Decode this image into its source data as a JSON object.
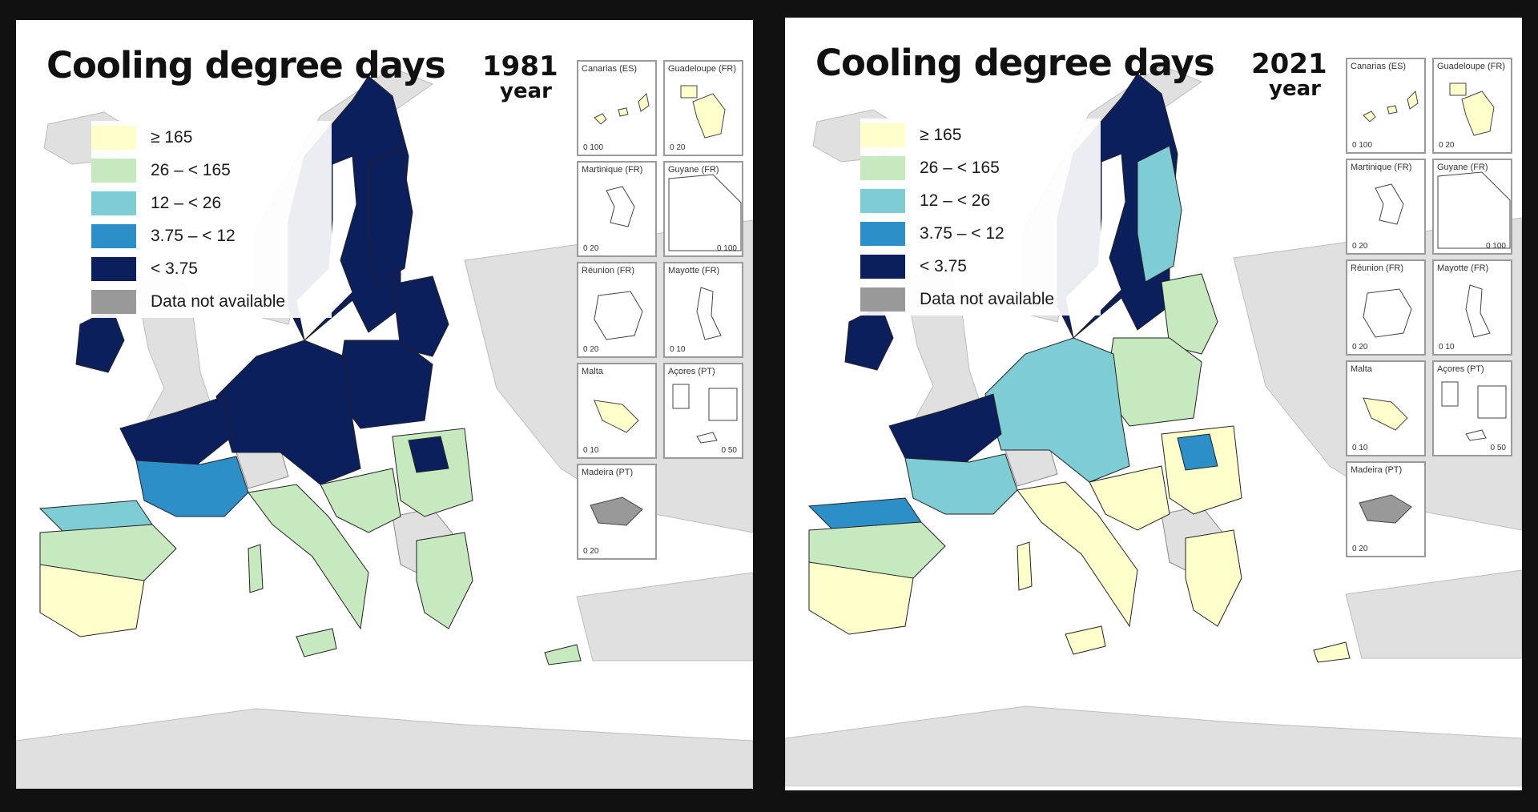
{
  "legend": {
    "items": [
      {
        "label": "≥ 165",
        "color": "#ffffcc"
      },
      {
        "label": "26 – < 165",
        "color": "#c7e9c0"
      },
      {
        "label": "12 – < 26",
        "color": "#7fcdd4"
      },
      {
        "label": "3.75 – < 12",
        "color": "#2c8fc8"
      },
      {
        "label": "< 3.75",
        "color": "#0b1f5c"
      },
      {
        "label": "Data not available",
        "color": "#999999"
      }
    ]
  },
  "panels": [
    {
      "title": "Cooling degree days",
      "year": "1981",
      "year_word": "year",
      "regions": {
        "nordic": "#0b1f5c",
        "central": "#0b1f5c",
        "poland": "#0b1f5c",
        "baltic": "#0b1f5c",
        "ireland": "#0b1f5c",
        "france_north": "#0b1f5c",
        "france_mid": "#2c8fc8",
        "iberia_north": "#7fcdd4",
        "iberia_mid": "#c7e9c0",
        "iberia_south": "#ffffcc",
        "italy": "#c7e9c0",
        "balkans": "#c7e9c0",
        "romania": "#c7e9c0",
        "romania_spot": "#0b1f5c",
        "greece": "#c7e9c0",
        "finland_east": "#0b1f5c"
      }
    },
    {
      "title": "Cooling degree days",
      "year": "2021",
      "year_word": "year",
      "regions": {
        "nordic": "#0b1f5c",
        "central": "#7fcdd4",
        "poland": "#c7e9c0",
        "baltic": "#c7e9c0",
        "ireland": "#0b1f5c",
        "france_north": "#0b1f5c",
        "france_mid": "#7fcdd4",
        "iberia_north": "#2c8fc8",
        "iberia_mid": "#c7e9c0",
        "iberia_south": "#ffffcc",
        "italy": "#ffffcc",
        "balkans": "#ffffcc",
        "romania": "#ffffcc",
        "romania_spot": "#2c8fc8",
        "greece": "#ffffcc",
        "finland_east": "#7fcdd4"
      }
    }
  ],
  "insets": [
    {
      "label": "Canarias (ES)",
      "scale": "0  100"
    },
    {
      "label": "Guadeloupe (FR)",
      "scale": "0  20"
    },
    {
      "label": "Martinique (FR)",
      "scale": "0  20"
    },
    {
      "label": "Guyane (FR)",
      "scale": "0  100"
    },
    {
      "label": "Réunion (FR)",
      "scale": "0  20"
    },
    {
      "label": "Mayotte (FR)",
      "scale": "0  10"
    },
    {
      "label": "Malta",
      "scale": "0  10"
    },
    {
      "label": "Açores (PT)",
      "scale": "0  50"
    },
    {
      "label": "Madeira (PT)",
      "scale": "0  20"
    }
  ]
}
